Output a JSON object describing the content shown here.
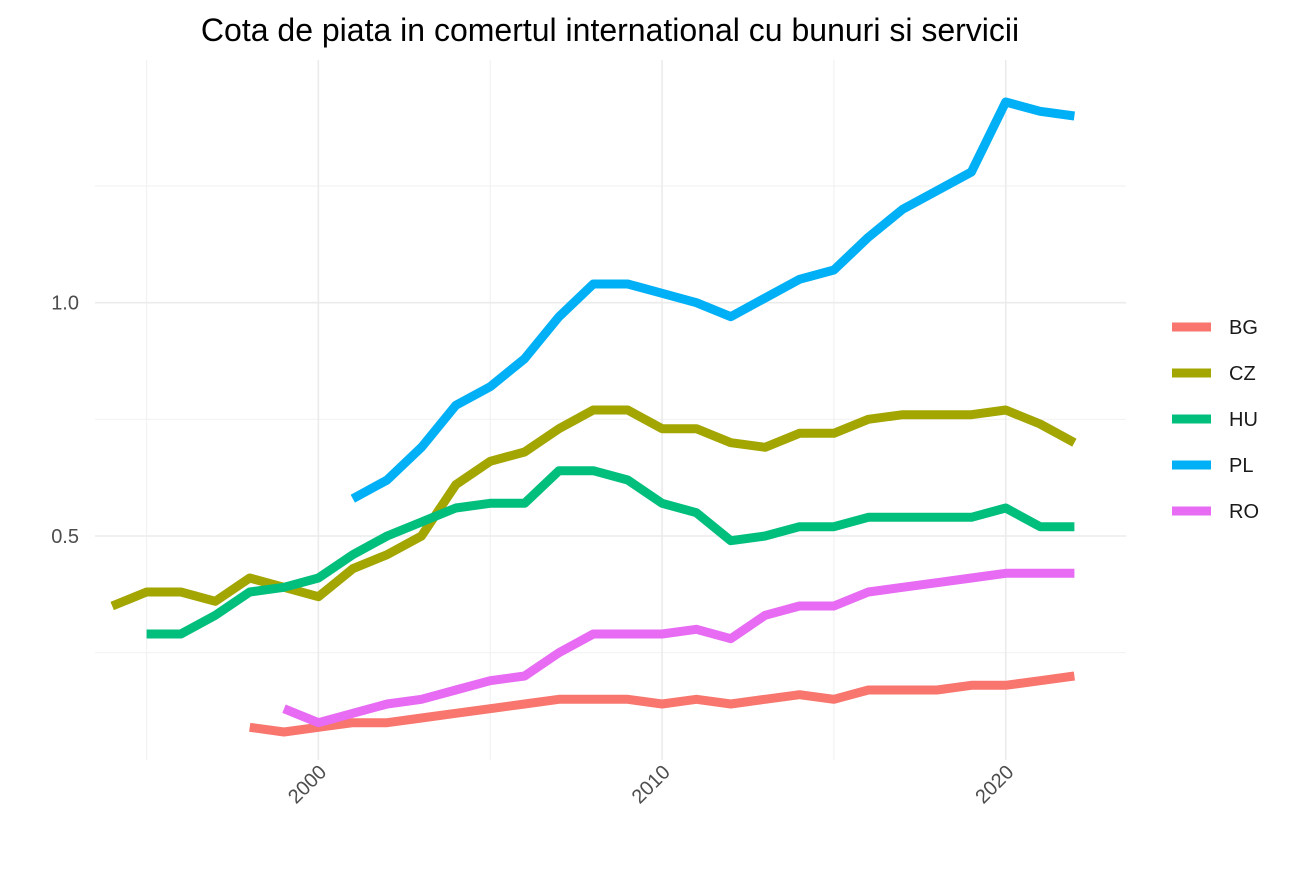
{
  "chart_data": {
    "type": "line",
    "title": "Cota de piata in comertul international cu bunuri si servicii",
    "xlabel": "",
    "ylabel": "",
    "xlim": [
      1993.5,
      2023.5
    ],
    "ylim": [
      0.02,
      1.52
    ],
    "x_ticks": [
      2000,
      2010,
      2020
    ],
    "x_tick_labels": [
      "2000",
      "2010",
      "2020"
    ],
    "y_ticks": [
      0.5,
      1.0
    ],
    "y_tick_labels": [
      "0.5",
      "1.0"
    ],
    "grid": true,
    "legend_position": "right",
    "series": [
      {
        "name": "BG",
        "color": "#F8766D",
        "x": [
          1998,
          1999,
          2000,
          2001,
          2002,
          2003,
          2004,
          2005,
          2006,
          2007,
          2008,
          2009,
          2010,
          2011,
          2012,
          2013,
          2014,
          2015,
          2016,
          2017,
          2018,
          2019,
          2020,
          2021,
          2022
        ],
        "values": [
          0.09,
          0.08,
          0.09,
          0.1,
          0.1,
          0.11,
          0.12,
          0.13,
          0.14,
          0.15,
          0.15,
          0.15,
          0.14,
          0.15,
          0.14,
          0.15,
          0.16,
          0.15,
          0.17,
          0.17,
          0.17,
          0.18,
          0.18,
          0.19,
          0.2
        ]
      },
      {
        "name": "CZ",
        "color": "#A3A500",
        "x": [
          1994,
          1995,
          1996,
          1997,
          1998,
          1999,
          2000,
          2001,
          2002,
          2003,
          2004,
          2005,
          2006,
          2007,
          2008,
          2009,
          2010,
          2011,
          2012,
          2013,
          2014,
          2015,
          2016,
          2017,
          2018,
          2019,
          2020,
          2021,
          2022
        ],
        "values": [
          0.35,
          0.38,
          0.38,
          0.36,
          0.41,
          0.39,
          0.37,
          0.43,
          0.46,
          0.5,
          0.61,
          0.66,
          0.68,
          0.73,
          0.77,
          0.77,
          0.73,
          0.73,
          0.7,
          0.69,
          0.72,
          0.72,
          0.75,
          0.76,
          0.76,
          0.76,
          0.77,
          0.74,
          0.7
        ]
      },
      {
        "name": "HU",
        "color": "#00BF7D",
        "x": [
          1995,
          1996,
          1997,
          1998,
          1999,
          2000,
          2001,
          2002,
          2003,
          2004,
          2005,
          2006,
          2007,
          2008,
          2009,
          2010,
          2011,
          2012,
          2013,
          2014,
          2015,
          2016,
          2017,
          2018,
          2019,
          2020,
          2021,
          2022
        ],
        "values": [
          0.29,
          0.29,
          0.33,
          0.38,
          0.39,
          0.41,
          0.46,
          0.5,
          0.53,
          0.56,
          0.57,
          0.57,
          0.64,
          0.64,
          0.62,
          0.57,
          0.55,
          0.49,
          0.5,
          0.52,
          0.52,
          0.54,
          0.54,
          0.54,
          0.54,
          0.56,
          0.52,
          0.52
        ]
      },
      {
        "name": "PL",
        "color": "#00B0F6",
        "x": [
          2001,
          2002,
          2003,
          2004,
          2005,
          2006,
          2007,
          2008,
          2009,
          2010,
          2011,
          2012,
          2013,
          2014,
          2015,
          2016,
          2017,
          2018,
          2019,
          2020,
          2021,
          2022
        ],
        "values": [
          0.58,
          0.62,
          0.69,
          0.78,
          0.82,
          0.88,
          0.97,
          1.04,
          1.04,
          1.02,
          1.0,
          0.97,
          1.01,
          1.05,
          1.07,
          1.14,
          1.2,
          1.24,
          1.28,
          1.43,
          1.41,
          1.4
        ]
      },
      {
        "name": "RO",
        "color": "#E76BF3",
        "x": [
          1999,
          2000,
          2001,
          2002,
          2003,
          2004,
          2005,
          2006,
          2007,
          2008,
          2009,
          2010,
          2011,
          2012,
          2013,
          2014,
          2015,
          2016,
          2017,
          2018,
          2019,
          2020,
          2021,
          2022
        ],
        "values": [
          0.13,
          0.1,
          0.12,
          0.14,
          0.15,
          0.17,
          0.19,
          0.2,
          0.25,
          0.29,
          0.29,
          0.29,
          0.3,
          0.28,
          0.33,
          0.35,
          0.35,
          0.38,
          0.39,
          0.4,
          0.41,
          0.42,
          0.42,
          0.42
        ]
      }
    ]
  }
}
